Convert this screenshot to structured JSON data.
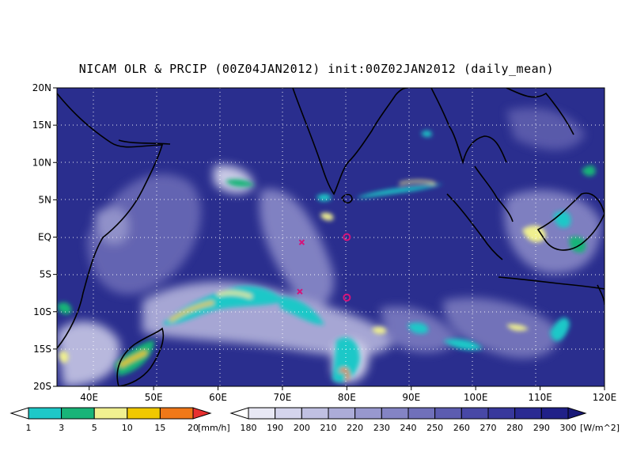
{
  "title": "NICAM OLR & PRCIP (00Z04JAN2012) init:00Z02JAN2012 (daily_mean)",
  "map": {
    "lon_range": [
      35,
      120
    ],
    "lat_range": [
      -20,
      20
    ],
    "x_ticks": [
      "40E",
      "50E",
      "60E",
      "70E",
      "80E",
      "90E",
      "100E",
      "110E",
      "120E"
    ],
    "y_ticks": [
      "20N",
      "15N",
      "10N",
      "5N",
      "EQ",
      "5S",
      "10S",
      "15S",
      "20S"
    ],
    "background_color": "#2a2e8e",
    "coastline_color": "#000000",
    "grid_style": "dotted"
  },
  "markers": [
    {
      "type": "x",
      "lon": 73,
      "lat": -0.7,
      "color": "#d4147a"
    },
    {
      "type": "x",
      "lon": 72.7,
      "lat": -7.3,
      "color": "#d4147a"
    },
    {
      "type": "o",
      "lon": 80,
      "lat": 0,
      "color": "#d4147a"
    },
    {
      "type": "o",
      "lon": 80,
      "lat": -8.1,
      "color": "#d4147a"
    }
  ],
  "precip_colorbar": {
    "labels": [
      "1",
      "3",
      "5",
      "10",
      "15",
      "20"
    ],
    "unit": "[mm/h]",
    "colors": [
      "#ffffff",
      "#1ec8c8",
      "#18b478",
      "#f0f090",
      "#f0c800",
      "#f07818",
      "#e83030"
    ]
  },
  "olr_colorbar": {
    "labels": [
      "180",
      "190",
      "200",
      "210",
      "220",
      "230",
      "240",
      "250",
      "260",
      "270",
      "280",
      "290",
      "300"
    ],
    "unit": "[W/m^2]",
    "colors": [
      "#ffffff",
      "#e8e8f4",
      "#d4d4ec",
      "#c0c0e2",
      "#acacd8",
      "#9898ce",
      "#8484c4",
      "#7070ba",
      "#5c5cb0",
      "#4848a6",
      "#38389c",
      "#2a2a92",
      "#202088",
      "#181878"
    ]
  }
}
